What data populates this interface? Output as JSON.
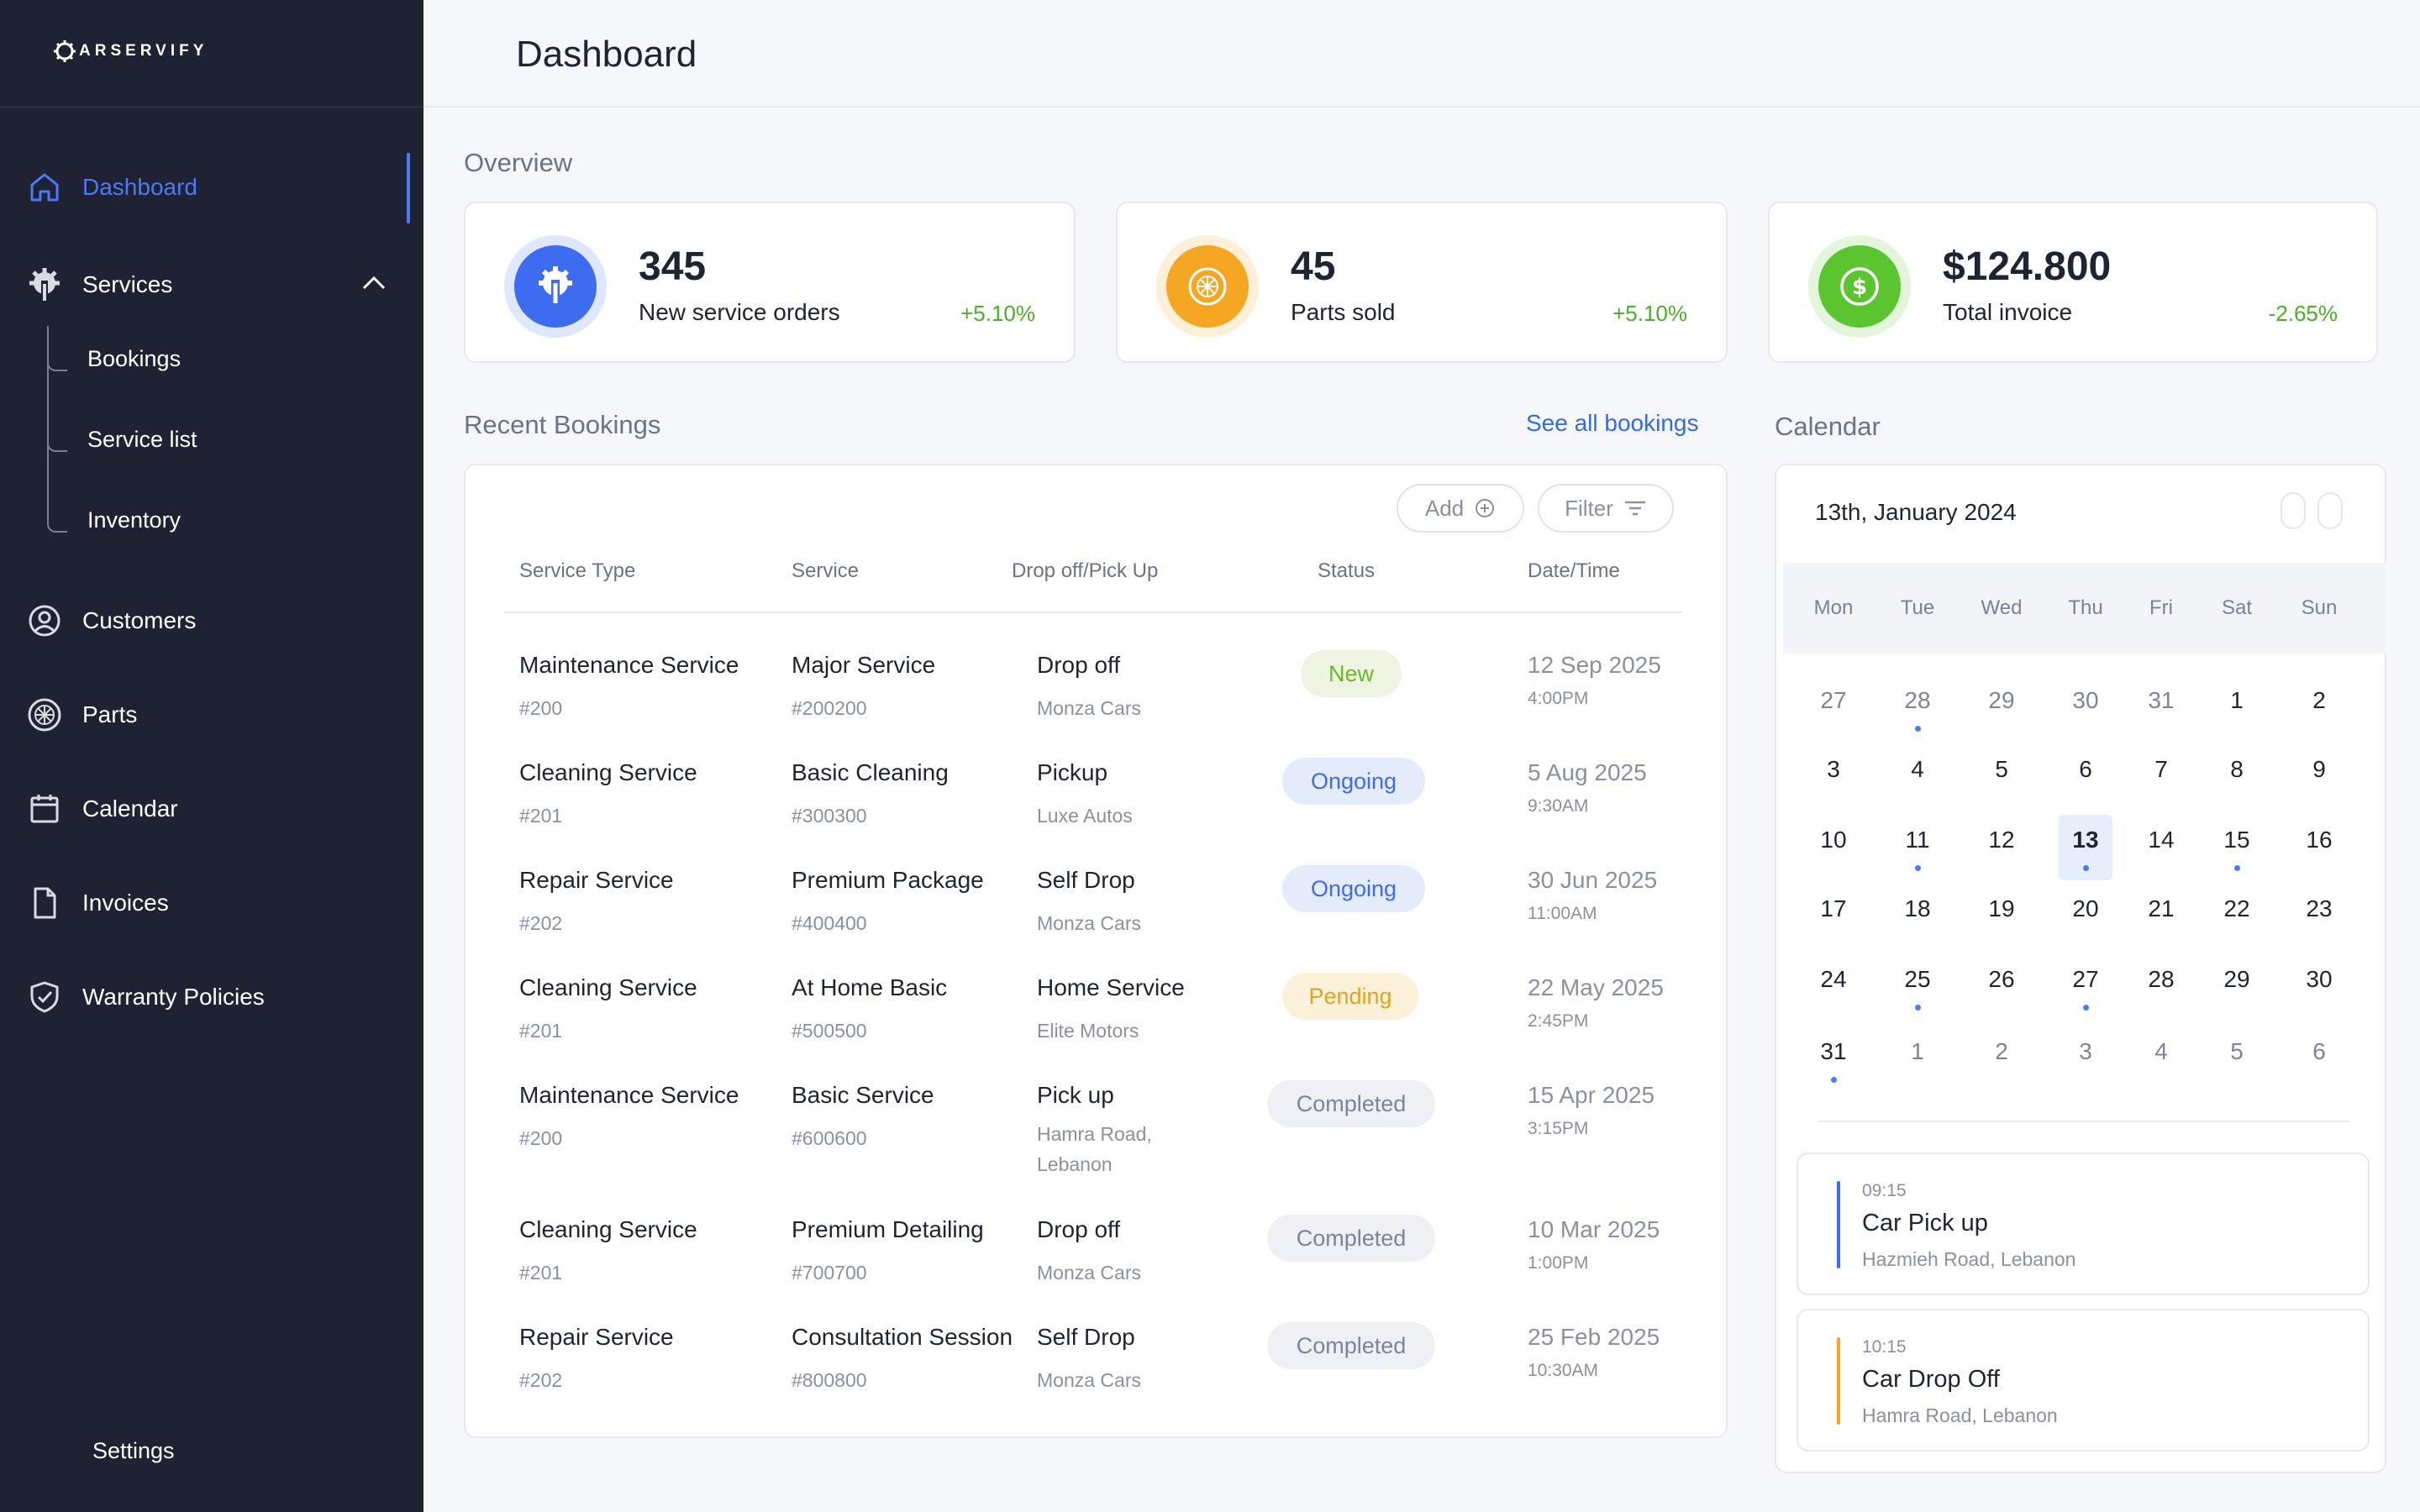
{
  "app": {
    "logo_text": "ARSERVIFY",
    "page_title": "Dashboard"
  },
  "sidebar": {
    "items": [
      {
        "label": "Dashboard",
        "icon": "home-icon",
        "active": true
      },
      {
        "label": "Services",
        "icon": "gear-wrench-icon",
        "expanded": true
      },
      {
        "label": "Customers",
        "icon": "user-circle-icon"
      },
      {
        "label": "Parts",
        "icon": "wheel-icon"
      },
      {
        "label": "Calendar",
        "icon": "calendar-icon"
      },
      {
        "label": "Invoices",
        "icon": "file-icon"
      },
      {
        "label": "Warranty Policies",
        "icon": "shield-check-icon"
      }
    ],
    "services_sub": [
      "Bookings",
      "Service list",
      "Inventory"
    ],
    "settings_label": "Settings"
  },
  "overview": {
    "title": "Overview",
    "stats": [
      {
        "value": "345",
        "label": "New service orders",
        "change": "+5.10%",
        "color": "#3d6cf0",
        "ring": "#dfe7fd",
        "change_color": "#4caf2a"
      },
      {
        "value": "45",
        "label": "Parts sold",
        "change": "+5.10%",
        "color": "#f5a623",
        "ring": "#fdf0d8",
        "change_color": "#4caf2a"
      },
      {
        "value": "$124.800",
        "label": "Total invoice",
        "change": "-2.65%",
        "color": "#5ac52f",
        "ring": "#e3f5da",
        "change_color": "#4caf2a"
      }
    ]
  },
  "bookings": {
    "title": "Recent Bookings",
    "see_all": "See all bookings",
    "add_label": "Add",
    "filter_label": "Filter",
    "headers": [
      "Service Type",
      "Service",
      "Drop off/Pick Up",
      "Status",
      "Date/Time"
    ],
    "rows": [
      {
        "type": "Maintenance Service",
        "type_id": "#200",
        "service": "Major Service",
        "service_id": "#200200",
        "mode": "Drop off",
        "location": "Monza Cars",
        "status": "New",
        "date": "12 Sep 2025",
        "time": "4:00PM"
      },
      {
        "type": "Cleaning Service",
        "type_id": "#201",
        "service": "Basic Cleaning",
        "service_id": "#300300",
        "mode": "Pickup",
        "location": "Luxe Autos",
        "status": "Ongoing",
        "date": "5 Aug 2025",
        "time": "9:30AM"
      },
      {
        "type": "Repair Service",
        "type_id": "#202",
        "service": "Premium Package",
        "service_id": "#400400",
        "mode": "Self Drop",
        "location": "Monza Cars",
        "status": "Ongoing",
        "date": "30 Jun 2025",
        "time": "11:00AM"
      },
      {
        "type": "Cleaning Service",
        "type_id": "#201",
        "service": "At Home Basic",
        "service_id": "#500500",
        "mode": "Home Service",
        "location": "Elite Motors",
        "status": "Pending",
        "date": "22 May 2025",
        "time": "2:45PM"
      },
      {
        "type": "Maintenance Service",
        "type_id": "#200",
        "service": "Basic Service",
        "service_id": "#600600",
        "mode": "Pick up",
        "location": "Hamra Road, Lebanon",
        "status": "Completed",
        "date": "15 Apr 2025",
        "time": "3:15PM"
      },
      {
        "type": "Cleaning Service",
        "type_id": "#201",
        "service": "Premium Detailing",
        "service_id": "#700700",
        "mode": "Drop off",
        "location": "Monza Cars",
        "status": "Completed",
        "date": "10 Mar 2025",
        "time": "1:00PM"
      },
      {
        "type": "Repair Service",
        "type_id": "#202",
        "service": "Consultation Session",
        "service_id": "#800800",
        "mode": "Self Drop",
        "location": "Monza Cars",
        "status": "Completed",
        "date": "25 Feb 2025",
        "time": "10:30AM"
      }
    ]
  },
  "calendar": {
    "title": "Calendar",
    "current_date": "13th, January 2024",
    "weekdays": [
      "Mon",
      "Tue",
      "Wed",
      "Thu",
      "Fri",
      "Sat",
      "Sun"
    ],
    "weeks": [
      [
        {
          "d": "27",
          "m": true
        },
        {
          "d": "28",
          "m": true,
          "dot": true
        },
        {
          "d": "29",
          "m": true
        },
        {
          "d": "30",
          "m": true
        },
        {
          "d": "31",
          "m": true
        },
        {
          "d": "1"
        },
        {
          "d": "2"
        }
      ],
      [
        {
          "d": "3"
        },
        {
          "d": "4"
        },
        {
          "d": "5"
        },
        {
          "d": "6"
        },
        {
          "d": "7"
        },
        {
          "d": "8"
        },
        {
          "d": "9"
        }
      ],
      [
        {
          "d": "10"
        },
        {
          "d": "11",
          "dot": true
        },
        {
          "d": "12"
        },
        {
          "d": "13",
          "sel": true,
          "dot": true
        },
        {
          "d": "14"
        },
        {
          "d": "15",
          "dot": true
        },
        {
          "d": "16"
        }
      ],
      [
        {
          "d": "17"
        },
        {
          "d": "18"
        },
        {
          "d": "19"
        },
        {
          "d": "20"
        },
        {
          "d": "21"
        },
        {
          "d": "22"
        },
        {
          "d": "23"
        }
      ],
      [
        {
          "d": "24"
        },
        {
          "d": "25",
          "dot": true
        },
        {
          "d": "26"
        },
        {
          "d": "27",
          "dot": true
        },
        {
          "d": "28"
        },
        {
          "d": "29"
        },
        {
          "d": "30"
        }
      ],
      [
        {
          "d": "31",
          "dot": true
        },
        {
          "d": "1",
          "m": true
        },
        {
          "d": "2",
          "m": true
        },
        {
          "d": "3",
          "m": true
        },
        {
          "d": "4",
          "m": true
        },
        {
          "d": "5",
          "m": true
        },
        {
          "d": "6",
          "m": true
        }
      ]
    ],
    "events": [
      {
        "time": "09:15",
        "title": "Car Pick up",
        "place": "Hazmieh Road, Lebanon",
        "color": "#3d6cf0"
      },
      {
        "time": "10:15",
        "title": "Car Drop Off",
        "place": "Hamra Road, Lebanon",
        "color": "#f5a623"
      }
    ]
  },
  "status_styles": {
    "New": {
      "bg": "#eef3e2",
      "fg": "#6bb82a"
    },
    "Ongoing": {
      "bg": "#e4ebfb",
      "fg": "#3d6cf0"
    },
    "Pending": {
      "bg": "#fbf1d9",
      "fg": "#e2a322"
    },
    "Completed": {
      "bg": "#eef0f3",
      "fg": "#7d8499"
    }
  }
}
